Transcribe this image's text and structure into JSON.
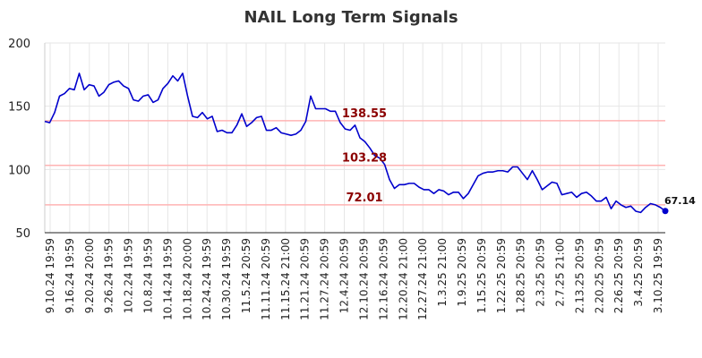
{
  "chart_data": {
    "type": "line",
    "title": "NAIL Long Term Signals",
    "ylim": [
      50,
      200
    ],
    "yticks": [
      50,
      100,
      150,
      200
    ],
    "grid": true,
    "xtick_labels": [
      "9.10.24 19:59",
      "9.16.24 19:59",
      "9.20.24 20:00",
      "9.26.24 19:59",
      "10.2.24 19:59",
      "10.8.24 19:59",
      "10.14.24 19:59",
      "10.18.24 20:00",
      "10.24.24 19:59",
      "10.30.24 19:59",
      "11.5.24 20:59",
      "11.11.24 20:59",
      "11.15.24 21:00",
      "11.21.24 20:59",
      "11.27.24 20:59",
      "12.4.24 20:59",
      "12.10.24 20:59",
      "12.16.24 20:59",
      "12.20.24 21:00",
      "12.27.24 21:00",
      "1.3.25 21:00",
      "1.9.25 20:59",
      "1.15.25 20:59",
      "1.22.25 20:59",
      "1.28.25 20:59",
      "2.3.25 20:59",
      "2.7.25 21:00",
      "2.13.25 20:59",
      "2.20.25 20:59",
      "2.26.25 20:59",
      "3.4.25 20:59",
      "3.10.25 19:59"
    ],
    "levels": [
      {
        "value": 138.55,
        "label": "138.55",
        "color": "#ffb3b3"
      },
      {
        "value": 103.28,
        "label": "103.28",
        "color": "#ffb3b3"
      },
      {
        "value": 72.01,
        "label": "72.01",
        "color": "#ffb3b3"
      }
    ],
    "last_point_label": "67.14",
    "colors": {
      "line": "#0000cc",
      "level_text": "#8b0000",
      "grid": "#e6e6e6"
    },
    "series": [
      {
        "values": [
          138,
          137,
          145,
          158,
          160,
          164,
          163,
          176,
          163,
          167,
          166,
          158,
          161,
          167,
          169,
          170,
          166,
          164,
          155,
          154,
          158,
          159,
          153,
          155,
          164,
          168,
          174,
          170,
          176,
          158,
          142,
          141,
          145,
          140,
          142,
          130,
          131,
          129,
          129,
          135,
          144,
          134,
          137,
          141,
          142,
          131,
          131,
          133,
          129,
          128,
          127,
          128,
          131,
          138,
          158,
          148,
          148,
          148,
          146,
          146,
          137,
          132,
          131,
          135,
          125,
          122,
          117,
          111,
          109,
          104,
          92,
          85,
          88,
          88,
          89,
          89,
          86,
          84,
          84,
          81,
          84,
          83,
          80,
          82,
          82,
          77,
          81,
          88,
          95,
          97,
          98,
          98,
          99,
          99,
          98,
          102,
          102,
          97,
          92,
          99,
          92,
          84,
          87,
          90,
          89,
          80,
          81,
          82,
          78,
          81,
          82,
          79,
          75,
          75,
          78,
          69,
          75,
          72,
          70,
          71,
          67,
          66,
          70,
          73,
          72,
          70,
          67.14
        ]
      }
    ]
  }
}
